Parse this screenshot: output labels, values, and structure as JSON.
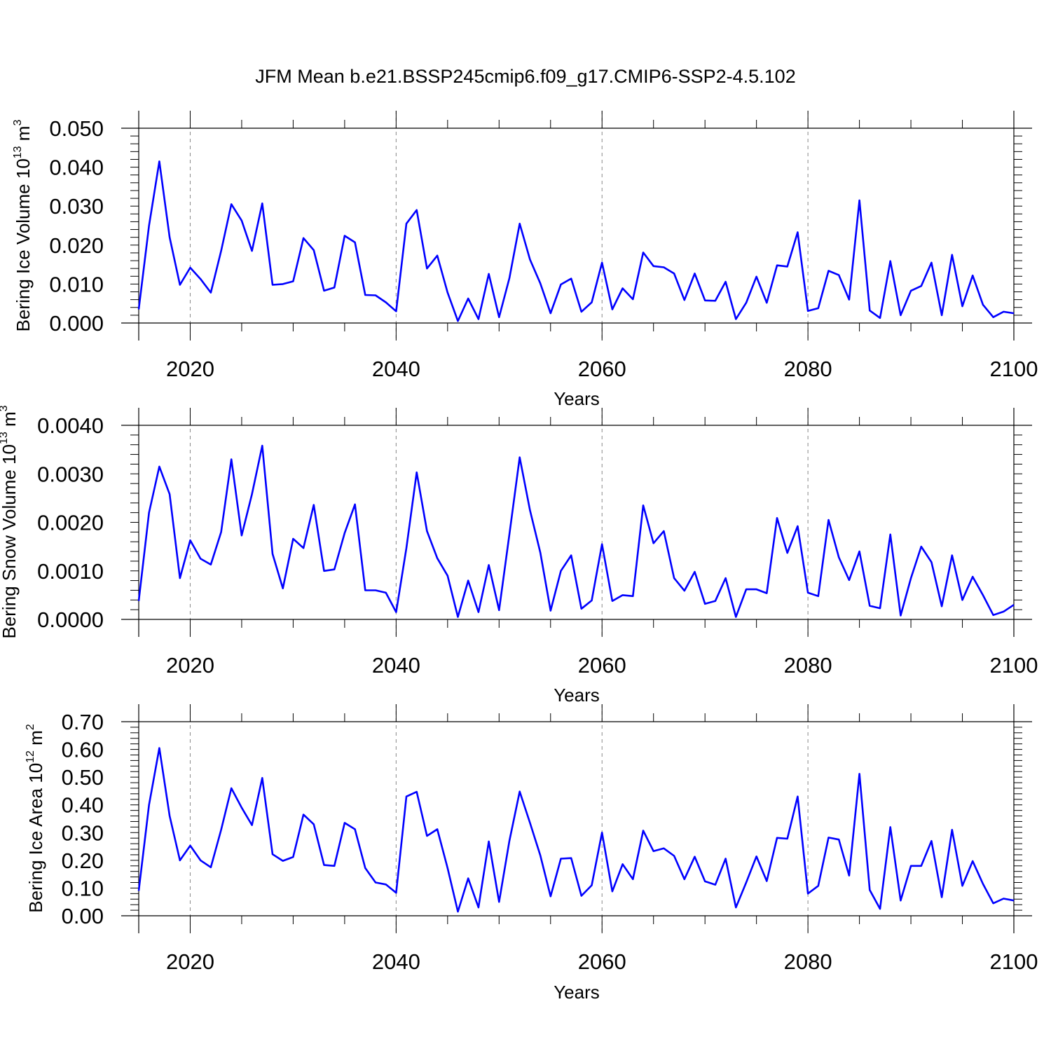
{
  "title": "JFM Mean b.e21.BSSP245cmip6.f09_g17.CMIP6-SSP2-4.5.102",
  "colors": {
    "line": "#0000ff",
    "axis": "#000000",
    "grid": "#888888"
  },
  "x": [
    2015,
    2016,
    2017,
    2018,
    2019,
    2020,
    2021,
    2022,
    2023,
    2024,
    2025,
    2026,
    2027,
    2028,
    2029,
    2030,
    2031,
    2032,
    2033,
    2034,
    2035,
    2036,
    2037,
    2038,
    2039,
    2040,
    2041,
    2042,
    2043,
    2044,
    2045,
    2046,
    2047,
    2048,
    2049,
    2050,
    2051,
    2052,
    2053,
    2054,
    2055,
    2056,
    2057,
    2058,
    2059,
    2060,
    2061,
    2062,
    2063,
    2064,
    2065,
    2066,
    2067,
    2068,
    2069,
    2070,
    2071,
    2072,
    2073,
    2074,
    2075,
    2076,
    2077,
    2078,
    2079,
    2080,
    2081,
    2082,
    2083,
    2084,
    2085,
    2086,
    2087,
    2088,
    2089,
    2090,
    2091,
    2092,
    2093,
    2094,
    2095,
    2096,
    2097,
    2098,
    2099,
    2100
  ],
  "chart_data": [
    {
      "type": "line",
      "ylabel": "Bering Ice Volume 10",
      "ylabel_exp": "13",
      "ylabel_unit": "m",
      "ylabel_unit_exp": "3",
      "xlabel": "Years",
      "xlim": [
        2015,
        2100
      ],
      "ylim": [
        0.0,
        0.05
      ],
      "yticks": [
        0.0,
        0.01,
        0.02,
        0.03,
        0.04,
        0.05
      ],
      "ytick_labels": [
        "0.000",
        "0.010",
        "0.020",
        "0.030",
        "0.040",
        "0.050"
      ],
      "yminor": 0.002,
      "xticks": [
        2020,
        2040,
        2060,
        2080,
        2100
      ],
      "xtick_labels": [
        "2020",
        "2040",
        "2060",
        "2080",
        "2100"
      ],
      "grid": "dashed vertical at major x ticks",
      "values": [
        0.0035,
        0.025,
        0.0415,
        0.022,
        0.0098,
        0.0142,
        0.0113,
        0.0078,
        0.0185,
        0.0305,
        0.0263,
        0.0185,
        0.0307,
        0.0098,
        0.01,
        0.0107,
        0.0218,
        0.0187,
        0.0083,
        0.0091,
        0.0224,
        0.0207,
        0.0072,
        0.0071,
        0.0053,
        0.003,
        0.0255,
        0.029,
        0.014,
        0.0173,
        0.0078,
        0.0005,
        0.0063,
        0.001,
        0.0126,
        0.0015,
        0.0115,
        0.0255,
        0.0163,
        0.0102,
        0.0025,
        0.0099,
        0.0114,
        0.0029,
        0.0053,
        0.0155,
        0.0035,
        0.0089,
        0.0061,
        0.0181,
        0.0146,
        0.0143,
        0.0127,
        0.0059,
        0.0127,
        0.0058,
        0.0057,
        0.0106,
        0.001,
        0.0052,
        0.0119,
        0.0052,
        0.0148,
        0.0145,
        0.0233,
        0.0031,
        0.0038,
        0.0134,
        0.0123,
        0.006,
        0.0315,
        0.0032,
        0.0013,
        0.0159,
        0.002,
        0.0083,
        0.0095,
        0.0155,
        0.002,
        0.0175,
        0.0043,
        0.0122,
        0.0047,
        0.0015,
        0.0029,
        0.0025
      ]
    },
    {
      "type": "line",
      "ylabel": "Bering Snow Volume 10",
      "ylabel_exp": "13",
      "ylabel_unit": "m",
      "ylabel_unit_exp": "3",
      "xlabel": "Years",
      "xlim": [
        2015,
        2100
      ],
      "ylim": [
        0.0,
        0.004
      ],
      "yticks": [
        0.0,
        0.001,
        0.002,
        0.003,
        0.004
      ],
      "ytick_labels": [
        "0.0000",
        "0.0010",
        "0.0020",
        "0.0030",
        "0.0040"
      ],
      "yminor": 0.0002,
      "xticks": [
        2020,
        2040,
        2060,
        2080,
        2100
      ],
      "xtick_labels": [
        "2020",
        "2040",
        "2060",
        "2080",
        "2100"
      ],
      "grid": "dashed vertical at major x ticks",
      "values": [
        0.00038,
        0.0022,
        0.00315,
        0.00258,
        0.00085,
        0.00163,
        0.00125,
        0.00113,
        0.0018,
        0.0033,
        0.00173,
        0.00258,
        0.00358,
        0.00135,
        0.00064,
        0.00166,
        0.00147,
        0.00236,
        0.001,
        0.00103,
        0.00178,
        0.00237,
        0.0006,
        0.0006,
        0.00055,
        0.00015,
        0.00147,
        0.00303,
        0.00182,
        0.00126,
        0.0009,
        5e-05,
        0.0008,
        0.00015,
        0.00112,
        0.00019,
        0.00175,
        0.00334,
        0.00225,
        0.00138,
        0.00018,
        0.001,
        0.00132,
        0.00022,
        0.00039,
        0.00155,
        0.00038,
        0.0005,
        0.00048,
        0.00235,
        0.00157,
        0.00182,
        0.00085,
        0.00059,
        0.00098,
        0.00032,
        0.00038,
        0.00085,
        5e-05,
        0.00062,
        0.00062,
        0.00054,
        0.00209,
        0.00137,
        0.00192,
        0.00055,
        0.00048,
        0.00205,
        0.00128,
        0.00081,
        0.0014,
        0.00028,
        0.00023,
        0.00175,
        8e-05,
        0.00085,
        0.0015,
        0.00118,
        0.00027,
        0.00132,
        0.0004,
        0.00088,
        0.0005,
        9e-05,
        0.00016,
        0.0003
      ]
    },
    {
      "type": "line",
      "ylabel": "Bering Ice Area 10",
      "ylabel_exp": "12",
      "ylabel_unit": "m",
      "ylabel_unit_exp": "2",
      "xlabel": "Years",
      "xlim": [
        2015,
        2100
      ],
      "ylim": [
        0.0,
        0.7
      ],
      "yticks": [
        0.0,
        0.1,
        0.2,
        0.3,
        0.4,
        0.5,
        0.6,
        0.7
      ],
      "ytick_labels": [
        "0.00",
        "0.10",
        "0.20",
        "0.30",
        "0.40",
        "0.50",
        "0.60",
        "0.70"
      ],
      "yminor": 0.02,
      "xticks": [
        2020,
        2040,
        2060,
        2080,
        2100
      ],
      "xtick_labels": [
        "2020",
        "2040",
        "2060",
        "2080",
        "2100"
      ],
      "grid": "dashed vertical at major x ticks",
      "values": [
        0.09,
        0.4,
        0.605,
        0.36,
        0.2,
        0.253,
        0.2,
        0.175,
        0.31,
        0.46,
        0.39,
        0.327,
        0.497,
        0.222,
        0.198,
        0.212,
        0.365,
        0.33,
        0.183,
        0.18,
        0.335,
        0.312,
        0.172,
        0.12,
        0.113,
        0.083,
        0.43,
        0.447,
        0.288,
        0.312,
        0.172,
        0.015,
        0.135,
        0.03,
        0.268,
        0.05,
        0.27,
        0.448,
        0.335,
        0.218,
        0.07,
        0.206,
        0.208,
        0.072,
        0.11,
        0.3,
        0.088,
        0.186,
        0.132,
        0.307,
        0.233,
        0.243,
        0.216,
        0.132,
        0.213,
        0.124,
        0.112,
        0.206,
        0.03,
        0.12,
        0.214,
        0.125,
        0.281,
        0.278,
        0.43,
        0.08,
        0.108,
        0.282,
        0.275,
        0.145,
        0.512,
        0.093,
        0.025,
        0.32,
        0.055,
        0.18,
        0.18,
        0.27,
        0.067,
        0.31,
        0.108,
        0.197,
        0.115,
        0.045,
        0.062,
        0.055
      ]
    }
  ]
}
